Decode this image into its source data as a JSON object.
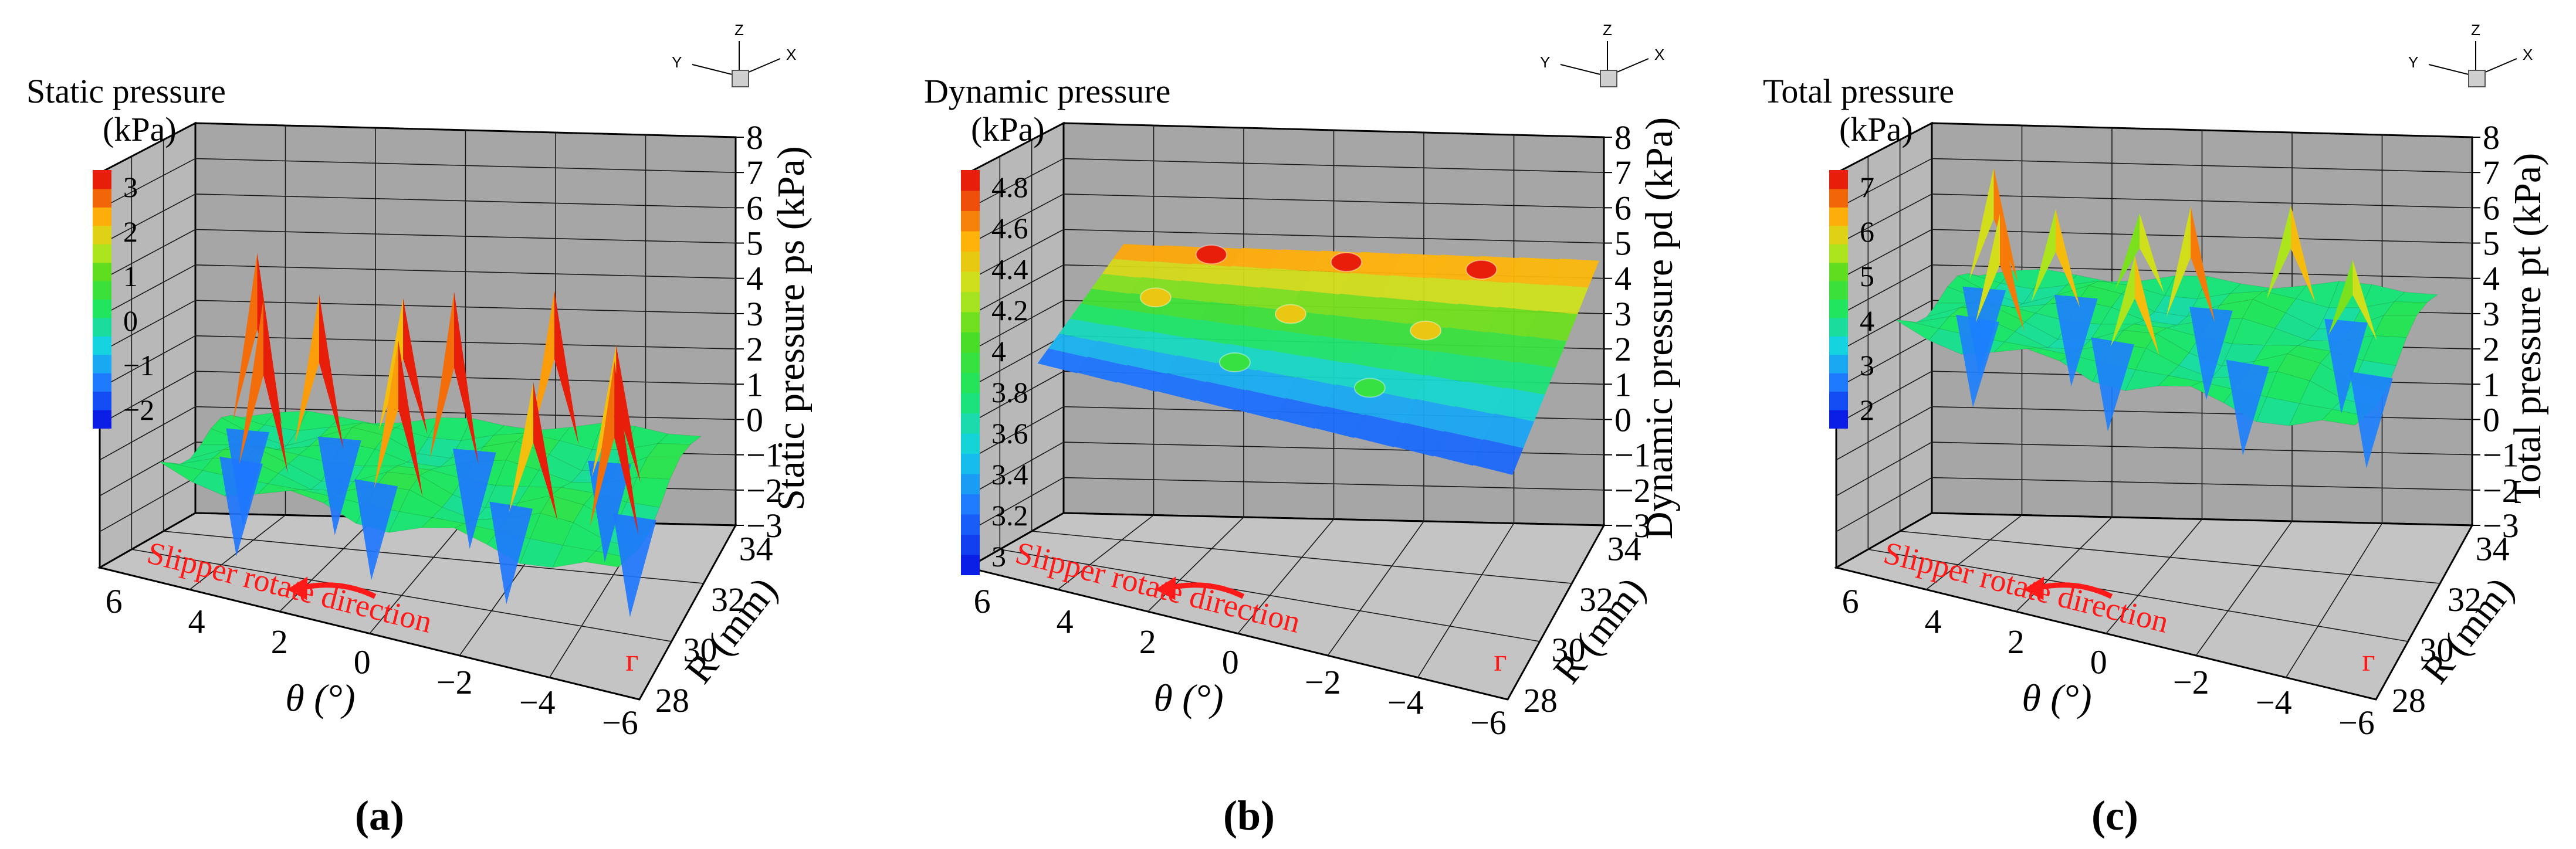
{
  "figure_panels": [
    "(a)",
    "(b)",
    "(c)"
  ],
  "chart_data": [
    {
      "type": "surface3d",
      "panel": "(a)",
      "title": "",
      "quantity": "Static pressure",
      "symbol": "ps",
      "colorbar": {
        "title": "Static pressure",
        "unit": "(kPa)",
        "ticks": [
          "3",
          "2",
          "1",
          "0",
          "−1",
          "−2"
        ],
        "range": [
          -2.7,
          3.4
        ]
      },
      "zlabel": "Static pressure ps (kPa)",
      "zticks": [
        "8",
        "7",
        "6",
        "5",
        "4",
        "3",
        "2",
        "1",
        "0",
        "−1",
        "−2",
        "−3"
      ],
      "zlim": [
        -3,
        8
      ],
      "xlabel": "θ (°)",
      "xticks": [
        "6",
        "4",
        "2",
        "0",
        "−2",
        "−4",
        "−6"
      ],
      "ylabel": "R (mm)",
      "yticks": [
        "34",
        "32",
        "30",
        "28"
      ],
      "surface": {
        "base_level": 0.0,
        "spikes": 10,
        "spike_max": 4.8,
        "dips": 8,
        "dip_min": -2.6
      },
      "annotation": "Slipper rotate direction",
      "caption_letter": "a"
    },
    {
      "type": "surface3d",
      "panel": "(b)",
      "title": "",
      "quantity": "Dynamic pressure",
      "symbol": "pd",
      "colorbar": {
        "title": "Dynamic pressure",
        "unit": "(kPa)",
        "ticks": [
          "4.8",
          "4.6",
          "4.4",
          "4.2",
          "4",
          "3.8",
          "3.6",
          "3.4",
          "3.2",
          "3"
        ],
        "range": [
          2.9,
          4.9
        ]
      },
      "zlabel": "Dynamic pressure pd (kPa)",
      "zticks": [
        "8",
        "7",
        "6",
        "5",
        "4",
        "3",
        "2",
        "1",
        "0",
        "−1",
        "−2",
        "−3"
      ],
      "zlim": [
        -3,
        8
      ],
      "xlabel": "θ (°)",
      "xticks": [
        "6",
        "4",
        "2",
        "0",
        "−2",
        "−4",
        "−6"
      ],
      "ylabel": "R (mm)",
      "yticks": [
        "34",
        "32",
        "30",
        "28"
      ],
      "surface": {
        "low_edge": 3.0,
        "high_edge": 4.8,
        "bumps": 8
      },
      "annotation": "Slipper rotate direction",
      "caption_letter": "b"
    },
    {
      "type": "surface3d",
      "panel": "(c)",
      "title": "",
      "quantity": "Total pressure",
      "symbol": "pt",
      "colorbar": {
        "title": "Total pressure",
        "unit": "(kPa)",
        "ticks": [
          "7",
          "6",
          "5",
          "4",
          "3",
          "2"
        ],
        "range": [
          1.4,
          7.5
        ]
      },
      "zlabel": "Total pressure pt (kPa)",
      "zticks": [
        "8",
        "7",
        "6",
        "5",
        "4",
        "3",
        "2",
        "1",
        "0",
        "−1",
        "−2",
        "−3"
      ],
      "zlim": [
        -3,
        8
      ],
      "xlabel": "θ (°)",
      "xticks": [
        "6",
        "4",
        "2",
        "0",
        "−2",
        "−4",
        "−6"
      ],
      "ylabel": "R (mm)",
      "yticks": [
        "34",
        "32",
        "30",
        "28"
      ],
      "surface": {
        "base_level": 4.0,
        "spikes": 8,
        "spike_max": 7.2,
        "dips": 8,
        "dip_min": 1.6
      },
      "annotation": "Slipper rotate direction",
      "caption_letter": "c"
    }
  ],
  "orientation_triad": {
    "labels": [
      "Z",
      "Y",
      "X"
    ]
  }
}
